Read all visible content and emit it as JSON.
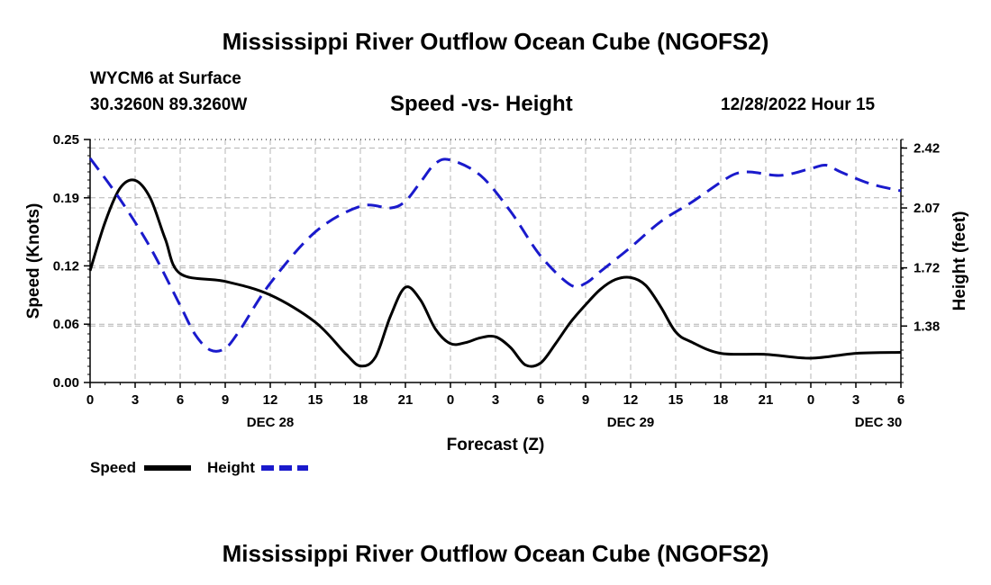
{
  "page": {
    "title_top": "Mississippi River Outflow Ocean Cube (NGOFS2)",
    "station_line": "WYCM6 at Surface",
    "coords_line": "30.3260N  89.3260W",
    "date_line": "12/28/2022 Hour 15",
    "title_bottom": "Mississippi River Outflow Ocean Cube (NGOFS2)"
  },
  "colors": {
    "speed": "#000000",
    "height": "#1a1acc",
    "grid": "#b4b4b4"
  },
  "chart_data": {
    "type": "line",
    "title": "Speed -vs- Height",
    "xlabel": "Forecast (Z)",
    "ylabel": "Speed (Knots)",
    "y2label": "Height (feet)",
    "xlim": [
      0,
      54
    ],
    "ylim": [
      0,
      0.25
    ],
    "y2lim": [
      1.05,
      2.47
    ],
    "x_ticks": [
      0,
      3,
      6,
      9,
      12,
      15,
      18,
      21,
      24,
      27,
      30,
      33,
      36,
      39,
      42,
      45,
      48,
      51,
      54
    ],
    "x_tick_labels": [
      "0",
      "3",
      "6",
      "9",
      "12",
      "15",
      "18",
      "21",
      "0",
      "3",
      "6",
      "9",
      "12",
      "15",
      "18",
      "21",
      "0",
      "3",
      "6"
    ],
    "date_labels": [
      {
        "x": 12,
        "label": "DEC 28"
      },
      {
        "x": 36,
        "label": "DEC 29"
      },
      {
        "x": 52.5,
        "label": "DEC 30"
      }
    ],
    "y_ticks": [
      0.0,
      0.06,
      0.12,
      0.19,
      0.25
    ],
    "y_tick_labels": [
      "0.00",
      "0.06",
      "0.12",
      "0.19",
      "0.25"
    ],
    "y2_ticks": [
      1.38,
      1.72,
      2.07,
      2.42
    ],
    "y2_tick_labels": [
      "1.38",
      "1.72",
      "2.07",
      "2.42"
    ],
    "grid": true,
    "legend_position": "bottom-left",
    "series": [
      {
        "name": "Speed",
        "axis": "left",
        "style": "solid",
        "x": [
          0,
          1,
          2,
          3,
          4,
          5,
          6,
          9,
          12,
          15,
          17,
          18,
          19,
          20,
          21,
          22,
          23,
          24,
          25,
          26,
          27,
          28,
          29,
          30,
          31,
          32,
          33,
          34,
          35,
          36,
          37,
          38,
          39,
          40,
          42,
          45,
          48,
          51,
          54
        ],
        "values": [
          0.115,
          0.165,
          0.2,
          0.208,
          0.19,
          0.148,
          0.112,
          0.104,
          0.09,
          0.062,
          0.03,
          0.017,
          0.026,
          0.068,
          0.098,
          0.085,
          0.055,
          0.04,
          0.041,
          0.046,
          0.047,
          0.036,
          0.018,
          0.02,
          0.04,
          0.062,
          0.08,
          0.096,
          0.106,
          0.108,
          0.1,
          0.078,
          0.052,
          0.042,
          0.03,
          0.029,
          0.025,
          0.03,
          0.031
        ]
      },
      {
        "name": "Height",
        "axis": "right",
        "style": "dashed",
        "x": [
          0,
          2,
          4,
          6,
          7,
          8,
          9,
          10,
          12,
          15,
          18,
          20,
          21,
          22,
          23,
          24,
          26,
          28,
          30,
          32,
          33,
          34,
          36,
          38,
          40,
          42,
          43,
          44,
          46,
          48,
          49,
          50,
          52,
          54
        ],
        "values": [
          2.36,
          2.12,
          1.84,
          1.5,
          1.33,
          1.24,
          1.25,
          1.36,
          1.63,
          1.93,
          2.08,
          2.07,
          2.11,
          2.22,
          2.33,
          2.35,
          2.26,
          2.05,
          1.79,
          1.62,
          1.63,
          1.7,
          1.84,
          1.99,
          2.1,
          2.22,
          2.27,
          2.28,
          2.26,
          2.3,
          2.32,
          2.28,
          2.21,
          2.17
        ]
      }
    ]
  }
}
